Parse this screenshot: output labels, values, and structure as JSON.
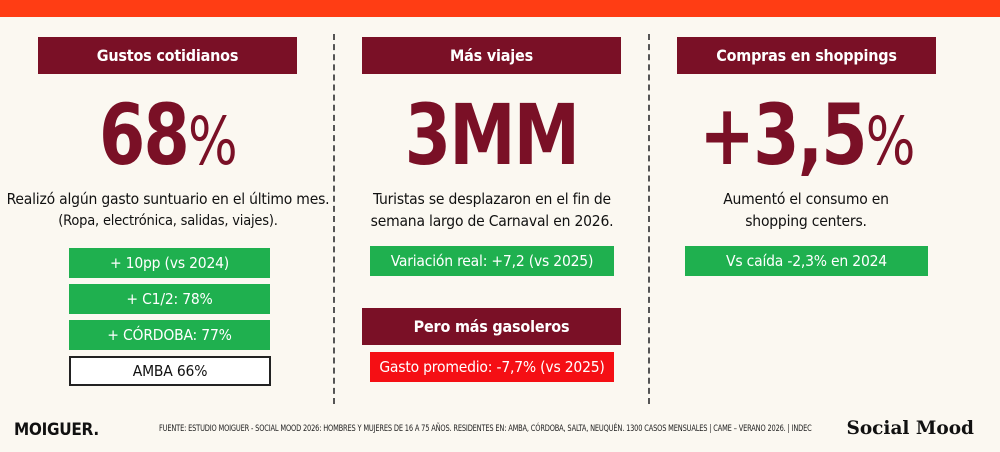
{
  "columns": [
    {
      "header": "Gustos cotidianos",
      "big_value": "68",
      "big_suffix": "%",
      "description": "Realizó algún gasto suntuario en el último mes.",
      "description_sub": "(Ropa, electrónica, salidas, viajes).",
      "pills": [
        {
          "label": "+ 10pp (vs 2024)",
          "style": "green"
        },
        {
          "label": "+ C1/2: 78%",
          "style": "green"
        },
        {
          "label": "+ CÓRDOBA: 77%",
          "style": "green"
        },
        {
          "label": "AMBA 66%",
          "style": "white"
        }
      ]
    },
    {
      "header": "Más viajes",
      "big_value": "3MM",
      "big_suffix": "",
      "description": "Turistas se desplazaron en el fin de",
      "description_sub": "semana largo de Carnaval en 2026.",
      "pills": [
        {
          "label": "Variación real: +7,2 (vs 2025)",
          "style": "green"
        }
      ],
      "sub_header": "Pero más gasoleros",
      "sub_pill": {
        "label": "Gasto promedio: -7,7% (vs 2025)",
        "style": "red"
      }
    },
    {
      "header": "Compras en shoppings",
      "big_value": "+3,5",
      "big_suffix": "%",
      "description": "Aumentó el consumo en",
      "description_sub": "shopping centers.",
      "pills": [
        {
          "label": "Vs caída -2,3% en 2024",
          "style": "green"
        }
      ]
    }
  ],
  "footer": {
    "brand_left": "MOIGUER.",
    "source": "FUENTE: ESTUDIO MOIGUER - SOCIAL MOOD 2026: HOMBRES Y MUJERES DE 16 A 75 AÑOS. RESIDENTES EN: AMBA, CÓRDOBA, SALTA, NEUQUÉN. 1300 CASOS MENSUALES  | CAME – VERANO 2026. | INDEC",
    "brand_right": "Social Mood"
  },
  "colors": {
    "accent_bar": "#ff3d14",
    "header_bg": "#7a1026",
    "big_number": "#7a1026",
    "pill_green": "#1fb04f",
    "pill_red": "#f50f14",
    "background": "#fbf8f1"
  }
}
